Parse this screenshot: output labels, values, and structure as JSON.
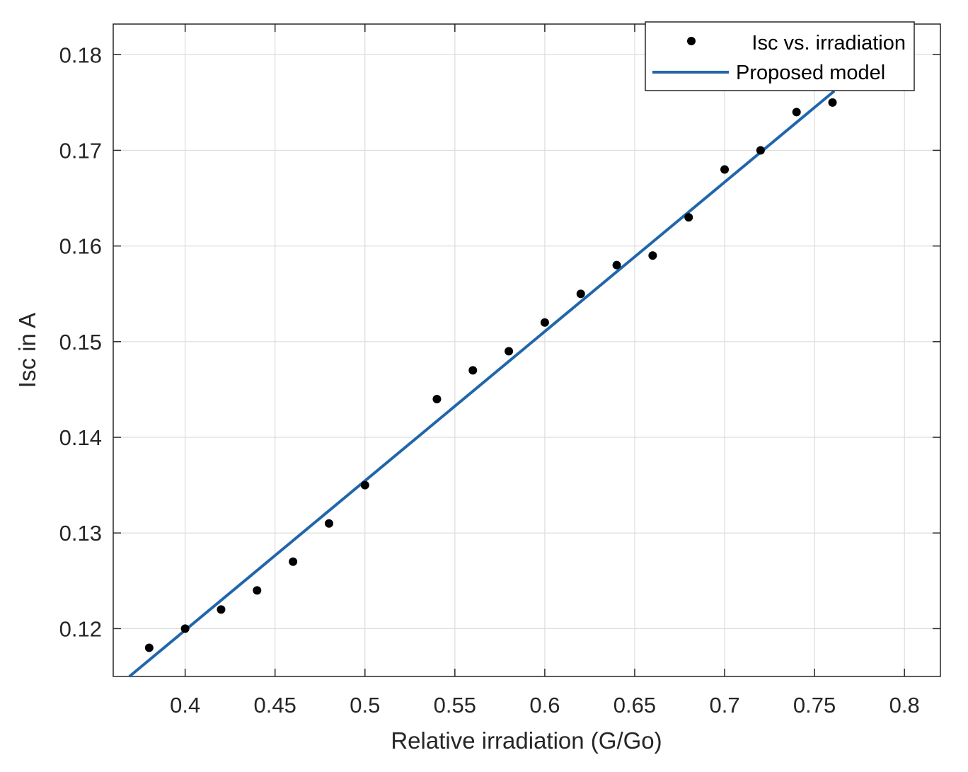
{
  "chart_data": {
    "type": "scatter",
    "title": "",
    "xlabel": "Relative irradiation (G/Go)",
    "ylabel": "Isc in A",
    "xlim": [
      0.36,
      0.82
    ],
    "ylim": [
      0.115,
      0.1832
    ],
    "xticks": [
      0.4,
      0.45,
      0.5,
      0.55,
      0.6,
      0.65,
      0.7,
      0.75,
      0.8
    ],
    "xtick_labels": [
      "0.4",
      "0.45",
      "0.5",
      "0.55",
      "0.6",
      "0.65",
      "0.7",
      "0.75",
      "0.8"
    ],
    "yticks": [
      0.12,
      0.13,
      0.14,
      0.15,
      0.16,
      0.17,
      0.18
    ],
    "ytick_labels": [
      "0.12",
      "0.13",
      "0.14",
      "0.15",
      "0.16",
      "0.17",
      "0.18"
    ],
    "grid": true,
    "legend_position": "top-right",
    "series": [
      {
        "name": "Isc vs. irradiation",
        "kind": "scatter",
        "color": "#000000",
        "x": [
          0.38,
          0.4,
          0.42,
          0.44,
          0.46,
          0.48,
          0.5,
          0.54,
          0.56,
          0.58,
          0.6,
          0.62,
          0.64,
          0.66,
          0.68,
          0.7,
          0.72,
          0.74,
          0.76
        ],
        "y": [
          0.118,
          0.12,
          0.122,
          0.124,
          0.127,
          0.131,
          0.135,
          0.144,
          0.147,
          0.149,
          0.152,
          0.155,
          0.158,
          0.159,
          0.163,
          0.168,
          0.17,
          0.174,
          0.175
        ]
      },
      {
        "name": "Proposed model",
        "kind": "line",
        "color": "#2166ac",
        "x": [
          0.369,
          0.761
        ],
        "y": [
          0.115,
          0.1762
        ]
      }
    ]
  }
}
